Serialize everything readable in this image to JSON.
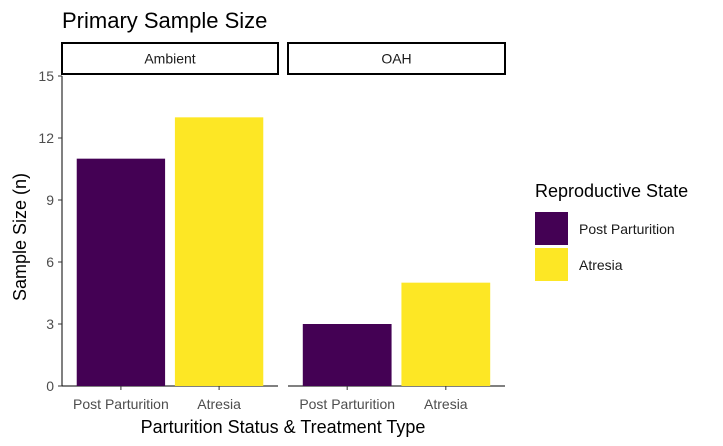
{
  "chart_data": {
    "type": "bar",
    "title": "Primary Sample Size",
    "xlabel": "Parturition Status & Treatment Type",
    "ylabel": "Sample Size (n)",
    "ylim": [
      0,
      15
    ],
    "yticks": [
      0,
      3,
      6,
      9,
      12,
      15
    ],
    "grid": false,
    "categories": [
      "Post Parturition",
      "Atresia"
    ],
    "facets": [
      {
        "name": "Ambient",
        "values": [
          11,
          13
        ]
      },
      {
        "name": "OAH",
        "values": [
          3,
          5
        ]
      }
    ],
    "legend": {
      "title": "Reproductive State",
      "placement": "right",
      "entries": [
        {
          "label": "Post Parturition",
          "color": "#440154"
        },
        {
          "label": "Atresia",
          "color": "#FDE725"
        }
      ]
    }
  }
}
